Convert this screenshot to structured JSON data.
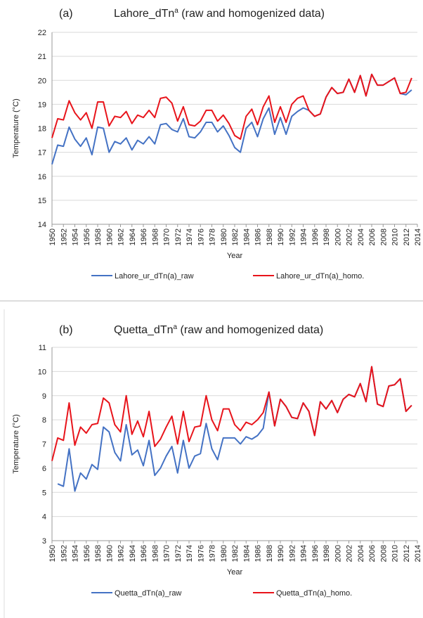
{
  "chart_data": [
    {
      "type": "line",
      "label": "(a)",
      "title": "Lahore_dTn",
      "title_sup": "a",
      "title_rest": " (raw and homogenized data)",
      "xlabel": "Year",
      "ylabel": "Temperature (°C)",
      "x": [
        1950,
        1951,
        1952,
        1953,
        1954,
        1955,
        1956,
        1957,
        1958,
        1959,
        1960,
        1961,
        1962,
        1963,
        1964,
        1965,
        1966,
        1967,
        1968,
        1969,
        1970,
        1971,
        1972,
        1973,
        1974,
        1975,
        1976,
        1977,
        1978,
        1979,
        1980,
        1981,
        1982,
        1983,
        1984,
        1985,
        1986,
        1987,
        1988,
        1989,
        1990,
        1991,
        1992,
        1993,
        1994,
        1995,
        1996,
        1997,
        1998,
        1999,
        2000,
        2001,
        2002,
        2003,
        2004,
        2005,
        2006,
        2007,
        2008,
        2009,
        2010,
        2011,
        2012,
        2013
      ],
      "xlim": [
        1950,
        2014
      ],
      "xticks": [
        1950,
        1952,
        1954,
        1956,
        1958,
        1960,
        1962,
        1964,
        1966,
        1968,
        1970,
        1972,
        1974,
        1976,
        1978,
        1980,
        1982,
        1984,
        1986,
        1988,
        1990,
        1992,
        1994,
        1996,
        1998,
        2000,
        2002,
        2004,
        2006,
        2008,
        2010,
        2012,
        2014
      ],
      "ylim": [
        14,
        22
      ],
      "yticks": [
        14,
        15,
        16,
        17,
        18,
        19,
        20,
        21,
        22
      ],
      "grid": true,
      "series": [
        {
          "name": "Lahore_ur_dTn(a)_raw",
          "color": "#4472c4",
          "values": [
            16.5,
            17.3,
            17.25,
            18.05,
            17.55,
            17.25,
            17.6,
            16.9,
            18.05,
            18.0,
            17.0,
            17.45,
            17.35,
            17.6,
            17.1,
            17.5,
            17.35,
            17.65,
            17.35,
            18.15,
            18.2,
            17.95,
            17.85,
            18.4,
            17.65,
            17.6,
            17.85,
            18.25,
            18.25,
            17.85,
            18.1,
            17.7,
            17.2,
            17.0,
            18.0,
            18.25,
            17.65,
            18.4,
            18.85,
            17.75,
            18.45,
            17.75,
            18.5,
            18.7,
            18.85,
            18.75,
            18.5,
            18.6,
            19.3,
            19.7,
            19.45,
            19.5,
            20.05,
            19.5,
            20.2,
            19.35,
            20.25,
            19.8,
            19.8,
            19.95,
            20.1,
            19.45,
            19.4,
            19.6
          ]
        },
        {
          "name": "Lahore_ur_dTn(a)_homo.",
          "color": "#e8141b",
          "values": [
            17.6,
            18.4,
            18.35,
            19.15,
            18.65,
            18.35,
            18.65,
            18.0,
            19.1,
            19.1,
            18.1,
            18.5,
            18.45,
            18.7,
            18.2,
            18.55,
            18.45,
            18.75,
            18.45,
            19.25,
            19.3,
            19.05,
            18.3,
            18.9,
            18.15,
            18.1,
            18.3,
            18.75,
            18.75,
            18.3,
            18.55,
            18.2,
            17.7,
            17.55,
            18.5,
            18.8,
            18.15,
            18.9,
            19.35,
            18.25,
            18.9,
            18.25,
            19.0,
            19.25,
            19.35,
            18.75,
            18.5,
            18.6,
            19.3,
            19.7,
            19.45,
            19.5,
            20.05,
            19.5,
            20.2,
            19.35,
            20.25,
            19.8,
            19.8,
            19.95,
            20.1,
            19.45,
            19.5,
            20.1
          ]
        }
      ]
    },
    {
      "type": "line",
      "label": "(b)",
      "title": "Quetta_dTn",
      "title_sup": "a",
      "title_rest": " (raw and homogenized data)",
      "xlabel": "Year",
      "ylabel": "Temperature (°C)",
      "x": [
        1950,
        1951,
        1952,
        1953,
        1954,
        1955,
        1956,
        1957,
        1958,
        1959,
        1960,
        1961,
        1962,
        1963,
        1964,
        1965,
        1966,
        1967,
        1968,
        1969,
        1970,
        1971,
        1972,
        1973,
        1974,
        1975,
        1976,
        1977,
        1978,
        1979,
        1980,
        1981,
        1982,
        1983,
        1984,
        1985,
        1986,
        1987,
        1988,
        1989,
        1990,
        1991,
        1992,
        1993,
        1994,
        1995,
        1996,
        1997,
        1998,
        1999,
        2000,
        2001,
        2002,
        2003,
        2004,
        2005,
        2006,
        2007,
        2008,
        2009,
        2010,
        2011,
        2012,
        2013
      ],
      "xlim": [
        1950,
        2014
      ],
      "xticks": [
        1950,
        1952,
        1954,
        1956,
        1958,
        1960,
        1962,
        1964,
        1966,
        1968,
        1970,
        1972,
        1974,
        1976,
        1978,
        1980,
        1982,
        1984,
        1986,
        1988,
        1990,
        1992,
        1994,
        1996,
        1998,
        2000,
        2002,
        2004,
        2006,
        2008,
        2010,
        2012,
        2014
      ],
      "ylim": [
        3,
        11
      ],
      "yticks": [
        3,
        4,
        5,
        6,
        7,
        8,
        9,
        10,
        11
      ],
      "grid": true,
      "series": [
        {
          "name": "Quetta_dTn(a)_raw",
          "color": "#4472c4",
          "values": [
            null,
            5.35,
            5.25,
            6.8,
            5.05,
            5.8,
            5.55,
            6.15,
            5.95,
            7.7,
            7.5,
            6.65,
            6.3,
            7.8,
            6.55,
            6.75,
            6.1,
            7.15,
            5.7,
            6.0,
            6.5,
            6.9,
            5.8,
            7.15,
            6.0,
            6.5,
            6.6,
            7.85,
            6.8,
            6.35,
            7.25,
            7.25,
            7.25,
            7.0,
            7.3,
            7.2,
            7.35,
            7.65,
            9.15,
            7.75,
            8.85,
            8.55,
            8.1,
            8.05,
            8.7,
            8.35,
            7.35,
            8.75,
            8.45,
            8.8,
            8.3,
            8.85,
            9.05,
            8.95,
            9.5,
            8.75,
            10.2,
            8.65,
            8.55,
            9.4,
            9.45,
            9.7,
            8.35,
            8.6
          ]
        },
        {
          "name": "Quetta_dTn(a)_homo.",
          "color": "#e8141b",
          "values": [
            6.3,
            7.25,
            7.15,
            8.7,
            6.95,
            7.7,
            7.45,
            7.8,
            7.85,
            8.9,
            8.7,
            7.8,
            7.5,
            9.0,
            7.4,
            7.95,
            7.3,
            8.35,
            6.9,
            7.2,
            7.7,
            8.15,
            7.0,
            8.35,
            7.1,
            7.7,
            7.75,
            9.0,
            8.0,
            7.55,
            8.45,
            8.45,
            7.8,
            7.55,
            7.9,
            7.8,
            8.0,
            8.3,
            9.15,
            7.75,
            8.85,
            8.55,
            8.1,
            8.05,
            8.7,
            8.35,
            7.35,
            8.75,
            8.45,
            8.8,
            8.3,
            8.85,
            9.05,
            8.95,
            9.5,
            8.75,
            10.2,
            8.65,
            8.55,
            9.4,
            9.45,
            9.7,
            8.35,
            8.6
          ]
        }
      ]
    }
  ]
}
